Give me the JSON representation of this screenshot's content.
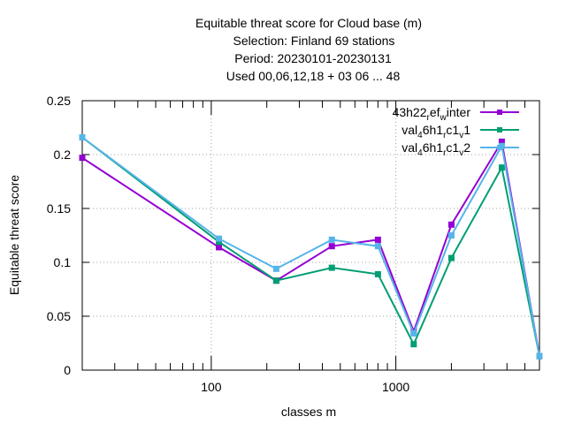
{
  "chart_data": {
    "type": "line",
    "title_lines": [
      "Equitable threat score  for Cloud base (m)",
      "Selection: Finland     69 stations",
      "Period: 20230101-20230131",
      "Used  00,06,12,18  + 03 06 ... 48"
    ],
    "xlabel": "classes m",
    "ylabel": "Equitable threat score",
    "x_scale": "log",
    "xlim": [
      20,
      6000
    ],
    "ylim": [
      0,
      0.25
    ],
    "x_tick_values": [
      100,
      1000
    ],
    "x_tick_labels": [
      "100",
      "1000"
    ],
    "y_tick_values": [
      0,
      0.05,
      0.1,
      0.15,
      0.2,
      0.25
    ],
    "y_tick_labels": [
      "0",
      "0.05",
      "0.1",
      "0.15",
      "0.2",
      "0.25"
    ],
    "grid": true,
    "legend_position": "top-right",
    "x": [
      20,
      110,
      225,
      450,
      800,
      1250,
      2000,
      3750,
      6000
    ],
    "series": [
      {
        "name_parts": [
          [
            "43h22",
            ""
          ],
          [
            "r",
            "sub"
          ],
          [
            "ef",
            ""
          ],
          [
            "w",
            "sub"
          ],
          [
            "inter",
            ""
          ]
        ],
        "color": "#9400d3",
        "values": [
          0.197,
          0.114,
          0.083,
          0.115,
          0.121,
          0.036,
          0.135,
          0.212,
          0.013
        ]
      },
      {
        "name_parts": [
          [
            "val",
            ""
          ],
          [
            "4",
            "sub"
          ],
          [
            "6h1",
            ""
          ],
          [
            "r",
            "sub"
          ],
          [
            "c1",
            ""
          ],
          [
            "v",
            "sub"
          ],
          [
            "1",
            ""
          ]
        ],
        "color": "#009e73",
        "values": [
          0.216,
          0.119,
          0.083,
          0.095,
          0.089,
          0.024,
          0.104,
          0.188,
          0.013
        ]
      },
      {
        "name_parts": [
          [
            "val",
            ""
          ],
          [
            "4",
            "sub"
          ],
          [
            "6h1",
            ""
          ],
          [
            "r",
            "sub"
          ],
          [
            "c1",
            ""
          ],
          [
            "v",
            "sub"
          ],
          [
            "2",
            ""
          ]
        ],
        "color": "#56b4e9",
        "values": [
          0.216,
          0.122,
          0.094,
          0.121,
          0.115,
          0.034,
          0.125,
          0.208,
          0.013
        ]
      }
    ]
  }
}
